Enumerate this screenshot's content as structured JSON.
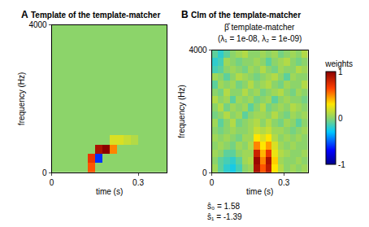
{
  "chart_data": [
    {
      "type": "heatmap",
      "panel": "A",
      "title": "Template of the template-matcher",
      "xlabel": "time (s)",
      "ylabel": "frequency (Hz)",
      "x": [
        0.0125,
        0.0375,
        0.0625,
        0.0875,
        0.1125,
        0.1375,
        0.1625,
        0.1875,
        0.2125,
        0.2375,
        0.2625,
        0.2875,
        0.3125,
        0.3375,
        0.3625,
        0.3875
      ],
      "y": [
        125,
        375,
        625,
        875,
        1125,
        1375,
        1625,
        1875,
        2125,
        2375,
        2625,
        2875,
        3125,
        3375,
        3625,
        3875
      ],
      "z": [
        [
          0,
          0,
          0,
          0,
          0,
          0.6,
          0,
          0,
          0,
          0,
          0,
          0,
          0,
          0,
          0,
          0
        ],
        [
          0,
          0,
          0,
          0,
          0,
          0.7,
          -0.6,
          0,
          0,
          0,
          0,
          0,
          0,
          0,
          0,
          0
        ],
        [
          0,
          0,
          0,
          0,
          0,
          0,
          0.9,
          1,
          0.5,
          0,
          0,
          0,
          0,
          0,
          0,
          0
        ],
        [
          0,
          0,
          0,
          0,
          0,
          0,
          0,
          0,
          0.2,
          0.2,
          0.15,
          0.1,
          0,
          0,
          0,
          0
        ],
        [
          0,
          0,
          0,
          0,
          0,
          0,
          0,
          0,
          0,
          0,
          0,
          0,
          0,
          0,
          0,
          0
        ],
        [
          0,
          0,
          0,
          0,
          0,
          0,
          0,
          0,
          0,
          0,
          0,
          0,
          0,
          0,
          0,
          0
        ],
        [
          0,
          0,
          0,
          0,
          0,
          0,
          0,
          0,
          0,
          0,
          0,
          0,
          0,
          0,
          0,
          0
        ],
        [
          0,
          0,
          0,
          0,
          0,
          0,
          0,
          0,
          0,
          0,
          0,
          0,
          0,
          0,
          0,
          0
        ],
        [
          0,
          0,
          0,
          0,
          0,
          0,
          0,
          0,
          0,
          0,
          0,
          0,
          0,
          0,
          0,
          0
        ],
        [
          0,
          0,
          0,
          0,
          0,
          0,
          0,
          0,
          0,
          0,
          0,
          0,
          0,
          0,
          0,
          0
        ],
        [
          0,
          0,
          0,
          0,
          0,
          0,
          0,
          0,
          0,
          0,
          0,
          0,
          0,
          0,
          0,
          0
        ],
        [
          0,
          0,
          0,
          0,
          0,
          0,
          0,
          0,
          0,
          0,
          0,
          0,
          0,
          0,
          0,
          0
        ],
        [
          0,
          0,
          0,
          0,
          0,
          0,
          0,
          0,
          0,
          0,
          0,
          0,
          0,
          0,
          0,
          0
        ],
        [
          0,
          0,
          0,
          0,
          0,
          0,
          0,
          0,
          0,
          0,
          0,
          0,
          0,
          0,
          0,
          0
        ],
        [
          0,
          0,
          0,
          0,
          0,
          0,
          0,
          0,
          0,
          0,
          0,
          0,
          0,
          0,
          0,
          0
        ],
        [
          0,
          0,
          0,
          0,
          0,
          0,
          0,
          0,
          0,
          0,
          0,
          0,
          0,
          0,
          0,
          0
        ]
      ],
      "xlim": [
        0,
        0.4
      ],
      "ylim": [
        0,
        4000
      ],
      "xticks": [
        0,
        0.3
      ],
      "yticks": [
        0,
        4000
      ]
    },
    {
      "type": "heatmap",
      "panel": "B",
      "title": "CIm of the template-matcher",
      "subtitle": [
        "β̂ template-matcher",
        "(λ₁ = 1e-08, λ₂ = 1e-09)"
      ],
      "xlabel": "time (s)",
      "ylabel": "frequency (Hz)",
      "annotations": [
        "ŝ₀ = 1.58",
        "ŝ₁ = -1.39"
      ],
      "x": [
        0.0125,
        0.0375,
        0.0625,
        0.0875,
        0.1125,
        0.1375,
        0.1625,
        0.1875,
        0.2125,
        0.2375,
        0.2625,
        0.2875,
        0.3125,
        0.3375,
        0.3625,
        0.3875
      ],
      "y": [
        125,
        375,
        625,
        875,
        1125,
        1375,
        1625,
        1875,
        2125,
        2375,
        2625,
        2875,
        3125,
        3375,
        3625,
        3875
      ],
      "z": [
        [
          0.05,
          -0.1,
          -0.2,
          -0.25,
          -0.15,
          0,
          0.05,
          0.9,
          0.6,
          0.85,
          0.3,
          0.1,
          0,
          0.05,
          0,
          0.05
        ],
        [
          0,
          -0.1,
          -0.15,
          -0.2,
          -0.1,
          0.05,
          0.1,
          0.95,
          0.5,
          0.9,
          0.35,
          0.05,
          0,
          0,
          0.05,
          0
        ],
        [
          0.05,
          0,
          -0.1,
          -0.1,
          0,
          0.05,
          0.05,
          0.8,
          0.4,
          0.7,
          0.25,
          0.1,
          0.05,
          0,
          0,
          0.05
        ],
        [
          0,
          0.05,
          0,
          -0.05,
          0.05,
          0,
          0.1,
          0.5,
          0.3,
          0.45,
          0.2,
          0.05,
          0,
          0.05,
          0,
          0
        ],
        [
          0.05,
          0,
          0.05,
          0,
          -0.05,
          0.05,
          0.05,
          0.3,
          0.2,
          0.3,
          0.1,
          0,
          0.05,
          0,
          0.05,
          0
        ],
        [
          0,
          -0.05,
          0,
          0.05,
          0,
          0,
          0.05,
          0.15,
          0.1,
          0.15,
          0.05,
          0.05,
          0,
          -0.05,
          0,
          0.05
        ],
        [
          0.05,
          -0.1,
          0,
          0.1,
          -0.05,
          0,
          0.05,
          0.1,
          0,
          0.1,
          0,
          -0.05,
          0.05,
          0,
          -0.1,
          0
        ],
        [
          -0.05,
          0,
          0.1,
          0,
          0.05,
          -0.1,
          0,
          0.05,
          0.05,
          0,
          0.1,
          0,
          -0.05,
          0.05,
          0,
          0.05
        ],
        [
          0,
          0.1,
          -0.05,
          0.05,
          0,
          0.05,
          -0.1,
          0,
          0.1,
          -0.05,
          0,
          0.05,
          0,
          0.1,
          0.05,
          0
        ],
        [
          0.1,
          0,
          0.05,
          -0.1,
          0.05,
          0,
          0.05,
          -0.05,
          0,
          0.05,
          -0.1,
          0,
          0.05,
          0,
          0,
          -0.05
        ],
        [
          0,
          -0.05,
          0.1,
          0,
          0,
          0.1,
          0,
          0.05,
          -0.05,
          0,
          0.05,
          0.1,
          0,
          -0.05,
          0.05,
          0
        ],
        [
          -0.1,
          0.05,
          0,
          0.05,
          -0.05,
          0,
          0.1,
          0,
          0.05,
          0.1,
          0,
          -0.05,
          0.05,
          0,
          0,
          0.1
        ],
        [
          0.05,
          0,
          -0.1,
          0,
          0.1,
          0.05,
          0,
          -0.05,
          0,
          0.05,
          0.1,
          0,
          -0.1,
          0.05,
          0,
          0
        ],
        [
          -0.15,
          -0.1,
          0,
          0.05,
          0,
          -0.05,
          0.05,
          0,
          0.1,
          0,
          -0.05,
          0.05,
          0,
          0,
          0.1,
          0.05
        ],
        [
          -0.2,
          -0.15,
          0.05,
          0,
          -0.05,
          0,
          0,
          0.05,
          0,
          -0.1,
          0,
          0.05,
          0.1,
          0,
          -0.05,
          0
        ],
        [
          -0.1,
          -0.2,
          -0.1,
          0,
          0.05,
          0.1,
          0,
          0,
          0.05,
          0,
          0.05,
          -0.05,
          0,
          0.05,
          0,
          0.1
        ]
      ],
      "xlim": [
        0,
        0.4
      ],
      "ylim": [
        0,
        4000
      ],
      "xticks": [
        0,
        0.3
      ],
      "yticks": [
        0,
        4000
      ],
      "colorbar": {
        "title": "weights",
        "range": [
          -1,
          1
        ],
        "ticks": [
          -1,
          0,
          1
        ]
      }
    }
  ]
}
